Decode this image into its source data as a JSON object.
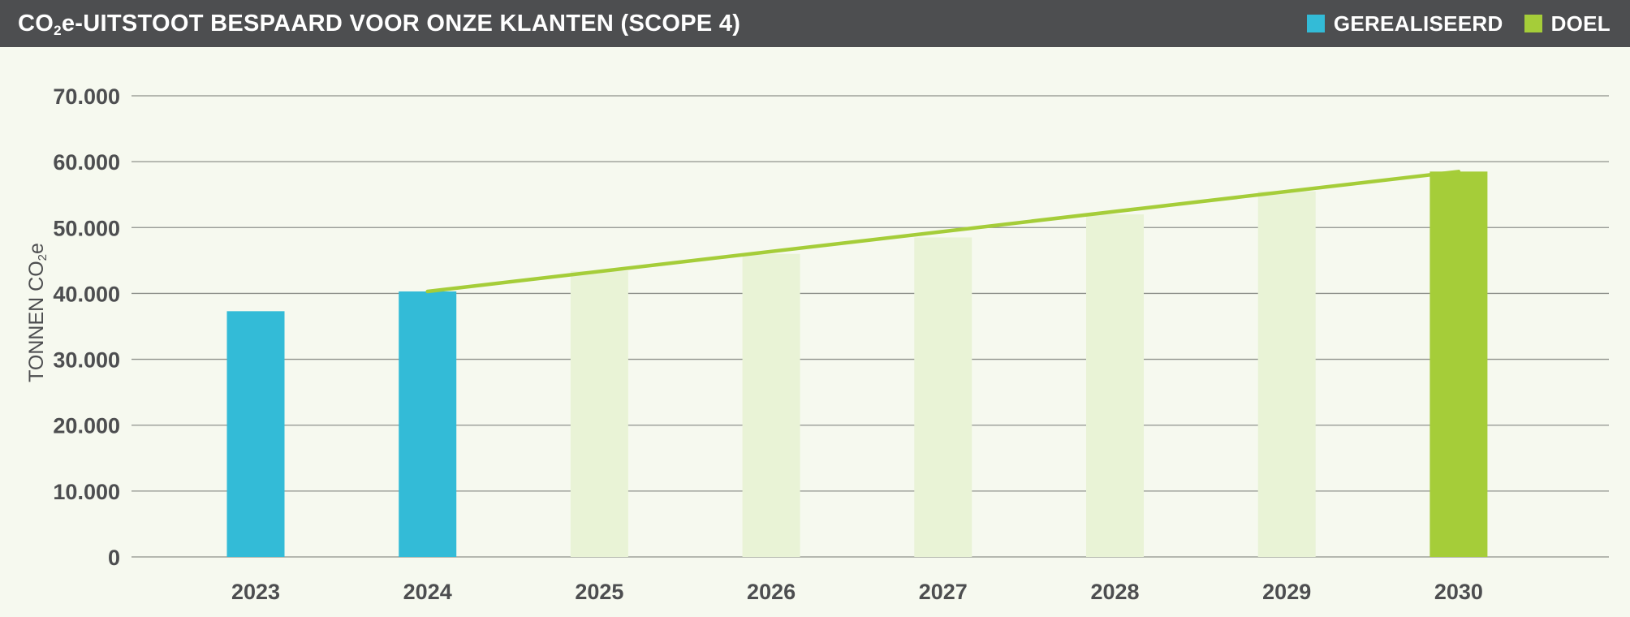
{
  "header": {
    "title_prefix": "CO",
    "title_sub": "2",
    "title_suffix": "e-UITSTOOT BESPAARD VOOR ONZE KLANTEN (SCOPE 4)"
  },
  "legend": [
    {
      "label": "GEREALISEERD",
      "color": "#33bbd7"
    },
    {
      "label": "DOEL",
      "color": "#a5cd39"
    }
  ],
  "colors": {
    "realised": "#33bbd7",
    "target": "#a5cd39",
    "projection": "#e9f3d6",
    "grid": "#8e918b",
    "text": "#4d4e50"
  },
  "chart_data": {
    "type": "bar",
    "title": "CO2e-UITSTOOT BESPAARD VOOR ONZE KLANTEN (SCOPE 4)",
    "ylabel_prefix": "TONNEN CO",
    "ylabel_sub": "2",
    "ylabel_suffix": "e",
    "ylim": [
      0,
      70000
    ],
    "yticks": [
      {
        "value": 0,
        "label": "0"
      },
      {
        "value": 10000,
        "label": "10.000"
      },
      {
        "value": 20000,
        "label": "20.000"
      },
      {
        "value": 30000,
        "label": "30.000"
      },
      {
        "value": 40000,
        "label": "40.000"
      },
      {
        "value": 50000,
        "label": "50.000"
      },
      {
        "value": 60000,
        "label": "60.000"
      },
      {
        "value": 70000,
        "label": "70.000"
      }
    ],
    "grid": true,
    "legend_position": "top-right",
    "categories": [
      "2023",
      "2024",
      "2025",
      "2026",
      "2027",
      "2028",
      "2029",
      "2030"
    ],
    "series": [
      {
        "name": "GEREALISEERD",
        "kind": "bar",
        "values": [
          37300,
          40300,
          null,
          null,
          null,
          null,
          null,
          null
        ]
      },
      {
        "name": "DOEL",
        "kind": "bar",
        "values": [
          null,
          null,
          null,
          null,
          null,
          null,
          null,
          58500
        ]
      },
      {
        "kind": "bar-projection",
        "values": [
          null,
          null,
          43400,
          46000,
          48500,
          52000,
          55500,
          null
        ]
      },
      {
        "kind": "trend-line",
        "points": [
          {
            "x": "2024",
            "y": 40300
          },
          {
            "x": "2030",
            "y": 58500
          }
        ]
      }
    ]
  }
}
